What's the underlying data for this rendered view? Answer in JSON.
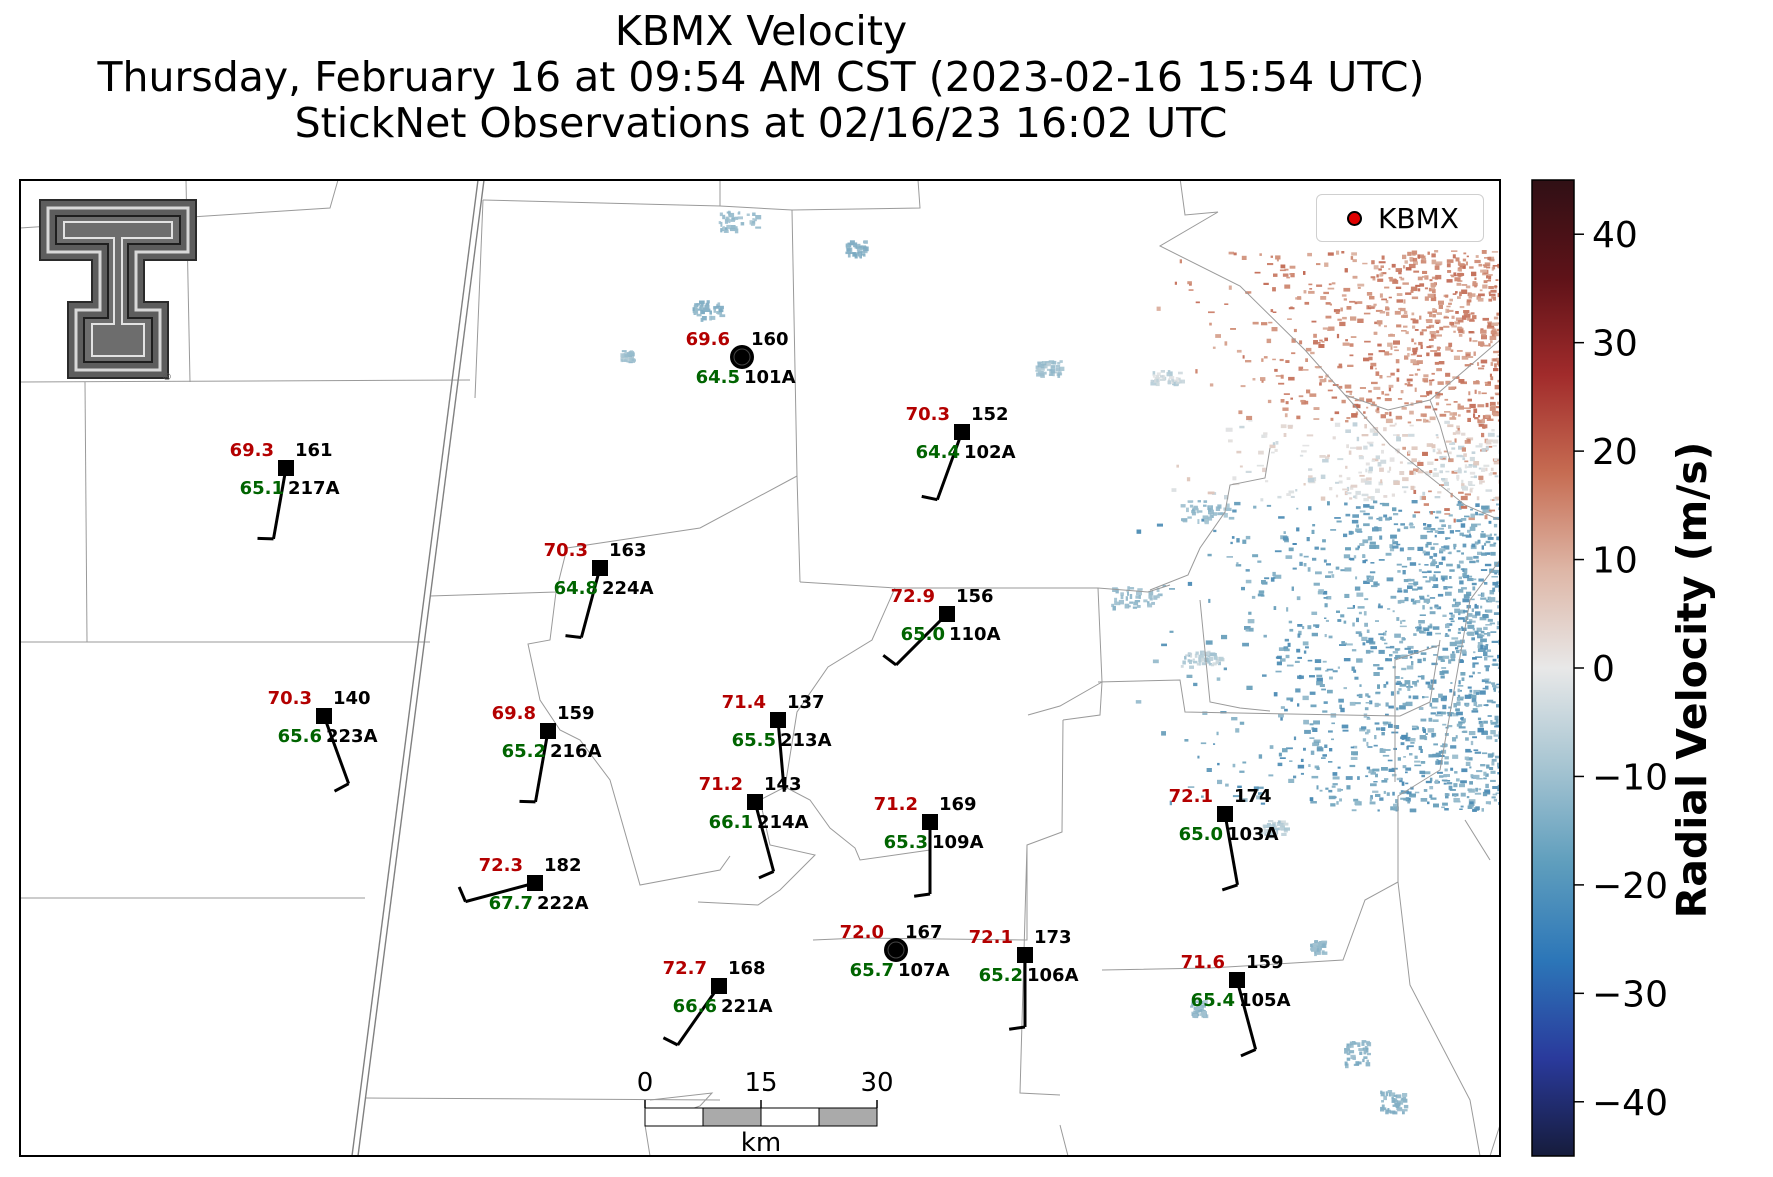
{
  "title": {
    "line1": "KBMX Velocity",
    "line2": "Thursday, February 16 at 09:54 AM CST (2023-02-16 15:54 UTC)",
    "line3": "StickNet Observations at 02/16/23 16:02 UTC"
  },
  "legend": {
    "label": "KBMX",
    "marker_color": "#e00000"
  },
  "colorbar": {
    "label": "Radial Velocity (m/s)",
    "range": [
      -45,
      45
    ],
    "ticks": [
      "40",
      "30",
      "20",
      "10",
      "0",
      "−10",
      "−20",
      "−30",
      "−40"
    ],
    "tick_values": [
      40,
      30,
      20,
      10,
      0,
      -10,
      -20,
      -30,
      -40
    ],
    "colors": [
      "#161c3c",
      "#2a3a9c",
      "#2c76b8",
      "#5f9ebd",
      "#a7c5d2",
      "#e8e8e8",
      "#deb6a6",
      "#c66c52",
      "#a12b2b",
      "#5e1218",
      "#301015"
    ]
  },
  "scale_bar": {
    "ticks": [
      "0",
      "15",
      "30"
    ],
    "unit": "km"
  },
  "logo": {
    "icon": "texas-tech-double-t-logo"
  },
  "stations": [
    {
      "id": "160",
      "temp": "69.6",
      "dew": "64.5",
      "probe": "101A",
      "marker": "circle",
      "wind_dir": 0,
      "wind_speed": 0
    },
    {
      "id": "161",
      "temp": "69.3",
      "dew": "65.1",
      "probe": "217A",
      "marker": "square",
      "wind_dir": 190,
      "wind_speed": 5
    },
    {
      "id": "152",
      "temp": "70.3",
      "dew": "64.4",
      "probe": "102A",
      "marker": "square",
      "wind_dir": 200,
      "wind_speed": 5
    },
    {
      "id": "163",
      "temp": "70.3",
      "dew": "64.8",
      "probe": "224A",
      "marker": "square",
      "wind_dir": 195,
      "wind_speed": 5
    },
    {
      "id": "156",
      "temp": "72.9",
      "dew": "65.0",
      "probe": "110A",
      "marker": "square",
      "wind_dir": 225,
      "wind_speed": 5
    },
    {
      "id": "140",
      "temp": "70.3",
      "dew": "65.6",
      "probe": "223A",
      "marker": "square",
      "wind_dir": 160,
      "wind_speed": 5
    },
    {
      "id": "159",
      "temp": "69.8",
      "dew": "65.2",
      "probe": "216A",
      "marker": "square",
      "wind_dir": 190,
      "wind_speed": 5
    },
    {
      "id": "137",
      "temp": "71.4",
      "dew": "65.5",
      "probe": "213A",
      "marker": "square",
      "wind_dir": 175,
      "wind_speed": 0
    },
    {
      "id": "143",
      "temp": "71.2",
      "dew": "66.1",
      "probe": "214A",
      "marker": "square",
      "wind_dir": 165,
      "wind_speed": 5
    },
    {
      "id": "169",
      "temp": "71.2",
      "dew": "65.3",
      "probe": "109A",
      "marker": "square",
      "wind_dir": 180,
      "wind_speed": 5
    },
    {
      "id": "174",
      "temp": "72.1",
      "dew": "65.0",
      "probe": "103A",
      "marker": "square",
      "wind_dir": 170,
      "wind_speed": 5
    },
    {
      "id": "182",
      "temp": "72.3",
      "dew": "67.7",
      "probe": "222A",
      "marker": "square",
      "wind_dir": 255,
      "wind_speed": 5
    },
    {
      "id": "167",
      "temp": "72.0",
      "dew": "65.7",
      "probe": "107A",
      "marker": "circle",
      "wind_dir": 0,
      "wind_speed": 0
    },
    {
      "id": "173",
      "temp": "72.1",
      "dew": "65.2",
      "probe": "106A",
      "marker": "square",
      "wind_dir": 180,
      "wind_speed": 5
    },
    {
      "id": "168",
      "temp": "72.7",
      "dew": "66.6",
      "probe": "221A",
      "marker": "square",
      "wind_dir": 215,
      "wind_speed": 5
    },
    {
      "id": "159",
      "temp": "71.6",
      "dew": "65.4",
      "probe": "105A",
      "marker": "square",
      "wind_dir": 165,
      "wind_speed": 5
    }
  ]
}
